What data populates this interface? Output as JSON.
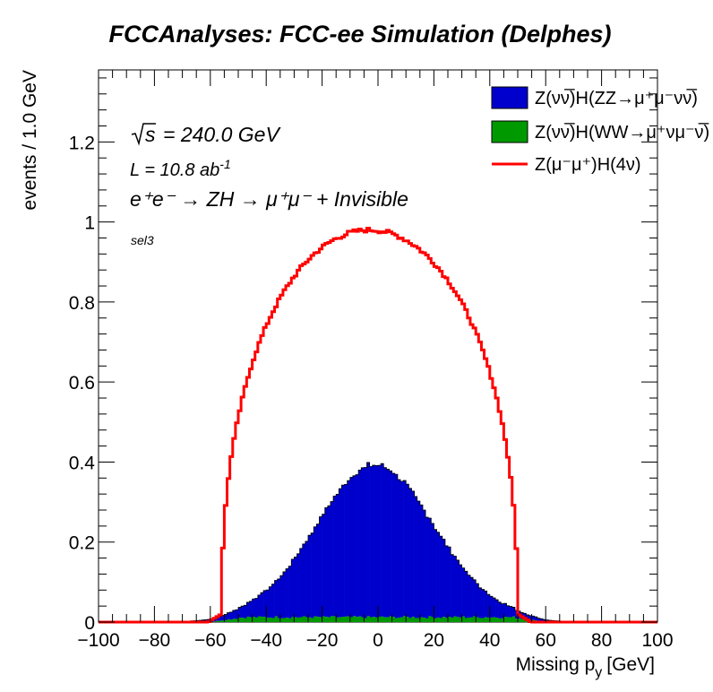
{
  "chart_data": {
    "type": "bar",
    "title": "FCCAnalyses: FCC-ee Simulation (Delphes)",
    "xlabel": "Missing p",
    "xlabel_sub": "y",
    "xlabel_unit": "[GeV]",
    "ylabel": "events / 1.0 GeV",
    "xlim": [
      -100,
      100
    ],
    "ylim": [
      0,
      1.38
    ],
    "xticks": [
      -100,
      -80,
      -60,
      -40,
      -20,
      0,
      20,
      40,
      60,
      80,
      100
    ],
    "yticks": [
      0,
      0.2,
      0.4,
      0.6,
      0.8,
      1,
      1.2
    ],
    "ytick_labels": [
      "0",
      "0.2",
      "0.4",
      "0.6",
      "0.8",
      "1",
      "1.2"
    ],
    "bin_width": 1.0,
    "legend_position": "top-right",
    "annotations": {
      "sqrt_s": "s",
      "energy": "= 240.0 GeV",
      "lumi_prefix": "L = 10.8 ab",
      "lumi_exp": "-1",
      "process_text": "e⁺e⁻ → ZH → μ⁺μ⁻ + Invisible",
      "selection": "sel3"
    },
    "series": [
      {
        "name": "Z(νν̅)H(ZZ→μ⁺μ⁻νν̅)",
        "style": "stacked-fill",
        "color": "#0000CC",
        "shape": "gaussian",
        "peak": 0.38,
        "mean": -1,
        "sigma": 21
      },
      {
        "name": "Z(νν̅)H(WW→μ⁺νμ⁻ν̅)",
        "style": "stacked-fill",
        "color": "#009900",
        "shape": "plateau",
        "height": 0.012,
        "range": [
          -60,
          60
        ]
      },
      {
        "name": "Z(μ⁻μ⁺)H(4ν)",
        "style": "line",
        "color": "#FF0000",
        "shape": "semicircle",
        "peak": 0.98,
        "center": -3,
        "half_width": 53
      }
    ]
  }
}
